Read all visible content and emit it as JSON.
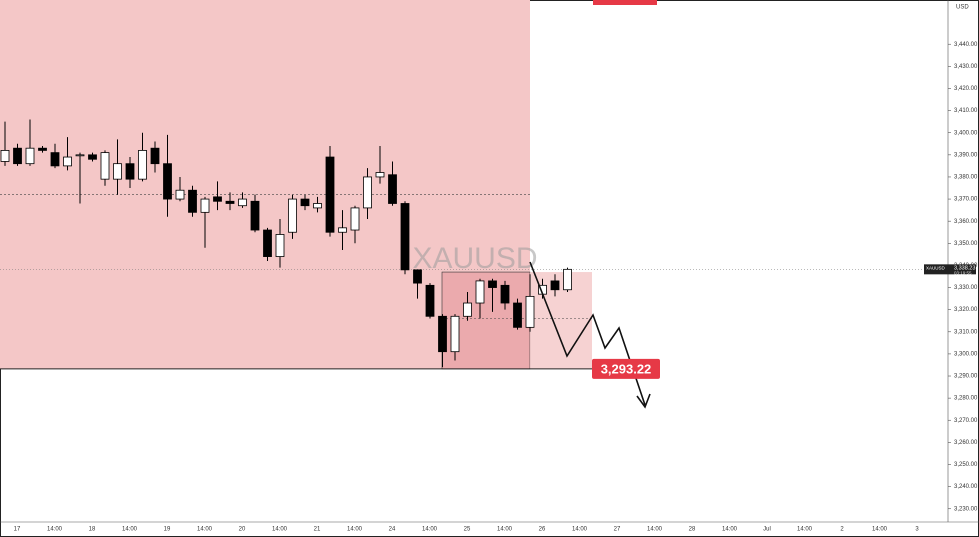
{
  "chart_data": {
    "type": "candlestick",
    "symbol": "XAUUSD",
    "currency": "USD",
    "open": [
      3387,
      3393,
      3386,
      3393,
      3391,
      3385,
      3390,
      3390,
      3379,
      3379,
      3386,
      3379,
      3393,
      3386,
      3370,
      3374,
      3364,
      3371,
      3369,
      3367,
      3369,
      3356,
      3344,
      3355,
      3370,
      3366,
      3389,
      3355,
      3356,
      3366,
      3380,
      3381,
      3368,
      3338,
      3331,
      3317,
      3301,
      3317,
      3323,
      3333,
      3331,
      3323,
      3312,
      3327,
      3333,
      3329
    ],
    "high": [
      3405,
      3395,
      3406,
      3394,
      3395,
      3398,
      3391,
      3391,
      3392,
      3397,
      3389,
      3400,
      3396,
      3399,
      3380,
      3376,
      3371,
      3378,
      3373,
      3373,
      3372,
      3357,
      3361,
      3372,
      3372,
      3371,
      3394,
      3365,
      3367,
      3384,
      3394,
      3387,
      3369,
      3338,
      3332,
      3318,
      3318,
      3328,
      3334,
      3334,
      3333,
      3325,
      3336,
      3334,
      3336,
      3339
    ],
    "low": [
      3385,
      3385,
      3385,
      3391,
      3384,
      3383,
      3368,
      3387,
      3376,
      3372,
      3375,
      3378,
      3382,
      3362,
      3369,
      3362,
      3348,
      3365,
      3365,
      3366,
      3355,
      3342,
      3339,
      3352,
      3365,
      3364,
      3353,
      3347,
      3350,
      3361,
      3377,
      3367,
      3336,
      3325,
      3316,
      3294,
      3297,
      3315,
      3316,
      3319,
      3320,
      3311,
      3310,
      3325,
      3326,
      3328
    ],
    "close": [
      3392,
      3386,
      3393,
      3392,
      3385,
      3389,
      3390,
      3388,
      3391,
      3386,
      3379,
      3392,
      3386,
      3370,
      3374,
      3364,
      3370,
      3369,
      3368,
      3370,
      3356,
      3344,
      3354,
      3370,
      3367,
      3368,
      3355,
      3357,
      3366,
      3380,
      3382,
      3368,
      3338,
      3332,
      3317,
      3301,
      3317,
      3323,
      3333,
      3330,
      3323,
      3312,
      3326,
      3331,
      3329,
      3338.23
    ],
    "up_color": "#ffffff",
    "down_color": "#000000",
    "x_labels": [
      "17",
      "14:00",
      "18",
      "14:00",
      "19",
      "14:00",
      "20",
      "14:00",
      "21",
      "14:00",
      "24",
      "14:00",
      "25",
      "14:00",
      "26",
      "14:00",
      "27",
      "14:00",
      "28",
      "14:00",
      "Jul",
      "14:00",
      "2",
      "14:00",
      "3"
    ],
    "ylim": [
      3224,
      3460
    ],
    "yticks": [
      {
        "value": 3230,
        "label": "3,230.00"
      },
      {
        "value": 3240,
        "label": "3,240.00"
      },
      {
        "value": 3250,
        "label": "3,250.00"
      },
      {
        "value": 3260,
        "label": "3,260.00"
      },
      {
        "value": 3270,
        "label": "3,270.00"
      },
      {
        "value": 3280,
        "label": "3,280.00"
      },
      {
        "value": 3290,
        "label": "3,290.00"
      },
      {
        "value": 3300,
        "label": "3,300.00"
      },
      {
        "value": 3310,
        "label": "3,310.00"
      },
      {
        "value": 3320,
        "label": "3,320.00"
      },
      {
        "value": 3330,
        "label": "3,330.00"
      },
      {
        "value": 3340,
        "label": "3,340.00"
      },
      {
        "value": 3350,
        "label": "3,350.00"
      },
      {
        "value": 3360,
        "label": "3,360.00"
      },
      {
        "value": 3370,
        "label": "3,370.00"
      },
      {
        "value": 3380,
        "label": "3,380.00"
      },
      {
        "value": 3390,
        "label": "3,390.00"
      },
      {
        "value": 3400,
        "label": "3,400.00"
      },
      {
        "value": 3410,
        "label": "3,410.00"
      },
      {
        "value": 3420,
        "label": "3,420.00"
      },
      {
        "value": 3430,
        "label": "3,430.00"
      },
      {
        "value": 3440,
        "label": "3,440.00"
      }
    ],
    "support": {
      "value": 3293.22,
      "label": "3,293.22"
    },
    "last_price": {
      "value": 3338.23,
      "label": "3,338.23",
      "countdown": "03:19:55"
    },
    "dashed_level": 3372,
    "box_top": 3337,
    "box_mid": 3316,
    "zone_color": "#f4c7c7",
    "box_color": "#e9a3a6",
    "label_color": "#e63946"
  }
}
